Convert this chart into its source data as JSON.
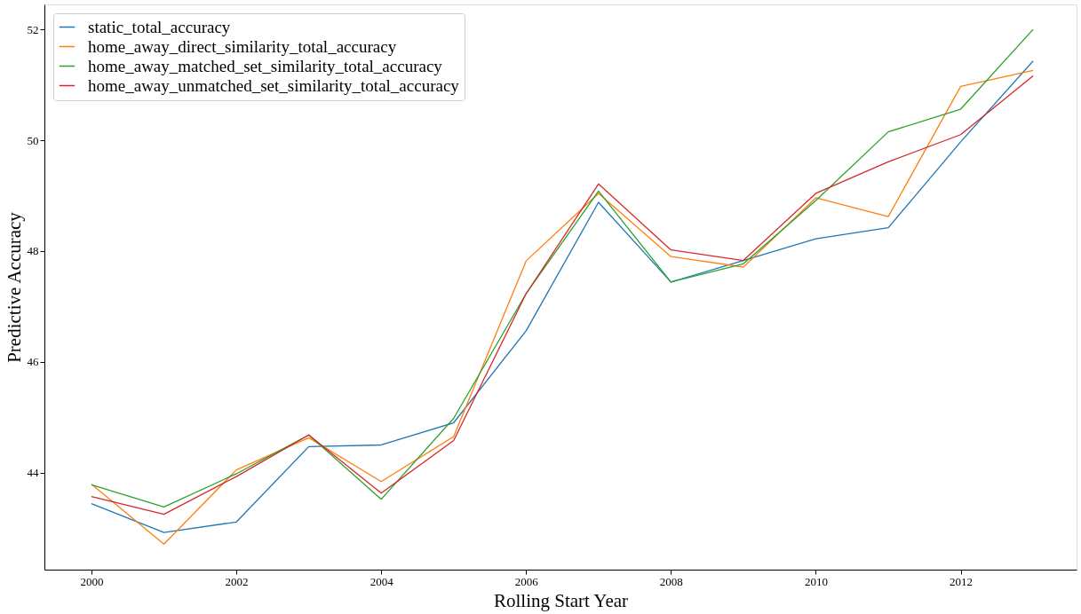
{
  "chart_data": {
    "type": "line",
    "xlabel": "Rolling Start Year",
    "ylabel": "Predictive Accuracy",
    "x": [
      2000,
      2001,
      2002,
      2003,
      2004,
      2005,
      2006,
      2007,
      2008,
      2009,
      2010,
      2011,
      2012,
      2013
    ],
    "series": [
      {
        "name": "static_total_accuracy",
        "color": "#1f77b4",
        "values": [
          43.44,
          42.92,
          43.11,
          44.47,
          44.5,
          44.9,
          46.56,
          48.88,
          47.44,
          47.83,
          48.22,
          48.42,
          49.97,
          51.43
        ]
      },
      {
        "name": "home_away_direct_similarity_total_accuracy",
        "color": "#ff7f0e",
        "values": [
          43.79,
          42.71,
          44.05,
          44.63,
          43.84,
          44.65,
          47.82,
          49.04,
          47.9,
          47.71,
          48.96,
          48.62,
          50.97,
          51.26
        ]
      },
      {
        "name": "home_away_matched_set_similarity_total_accuracy",
        "color": "#2ca02c",
        "values": [
          43.78,
          43.38,
          43.98,
          44.68,
          43.52,
          44.98,
          47.23,
          49.08,
          47.44,
          47.77,
          48.91,
          50.15,
          50.56,
          52.0
        ]
      },
      {
        "name": "home_away_unmatched_set_similarity_total_accuracy",
        "color": "#d62728",
        "values": [
          43.57,
          43.25,
          43.93,
          44.68,
          43.63,
          44.58,
          47.23,
          49.21,
          48.02,
          47.83,
          49.04,
          49.61,
          50.1,
          51.16
        ]
      }
    ],
    "xlim": [
      1999.35,
      2013.6
    ],
    "ylim": [
      42.25,
      52.45
    ],
    "xticks": [
      2000,
      2002,
      2004,
      2006,
      2008,
      2010,
      2012
    ],
    "yticks": [
      44,
      46,
      48,
      50,
      52
    ],
    "grid": false,
    "legend": "top left",
    "marker": "none",
    "line_style": "solid"
  }
}
